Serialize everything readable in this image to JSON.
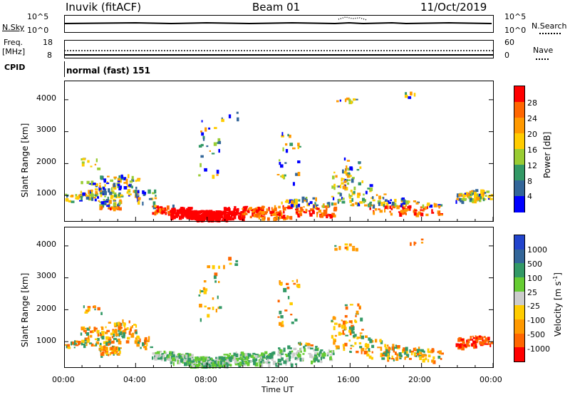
{
  "header": {
    "site": "Inuvik (fitACF)",
    "beam": "Beam 01",
    "date": "11/Oct/2019"
  },
  "top_panels": {
    "nsky_label": "N.Sky",
    "nsky_ticks": [
      "10^5",
      "10^0"
    ],
    "nsearch_label": "N.Search",
    "nsearch_ticks": [
      "10^5",
      "10^0"
    ],
    "freq_label": "Freq.",
    "freq_unit": "[MHz]",
    "freq_ticks": [
      "18",
      "8"
    ],
    "nave_label": "Nave",
    "nave_ticks": [
      "60",
      "0"
    ],
    "cpid_label": "CPID",
    "cpid_text": "normal (fast) 151"
  },
  "chart_data": [
    {
      "type": "heatmap",
      "name": "power",
      "ylabel": "Slant Range [km]",
      "yticks": [
        "4000",
        "3000",
        "2000",
        "1000"
      ],
      "ylim": [
        200,
        4600
      ],
      "xlim": [
        0,
        24
      ],
      "colorbar_label": "Power [dB]",
      "colorbar_ticks": [
        "28",
        "24",
        "20",
        "16",
        "12",
        "8",
        "4"
      ],
      "colorbar_colors": [
        "#ff0000",
        "#ff6600",
        "#ff9900",
        "#ffcc00",
        "#99cc33",
        "#339966",
        "#336699",
        "#0000ff"
      ]
    },
    {
      "type": "heatmap",
      "name": "velocity",
      "ylabel": "Slant Range [km]",
      "yticks": [
        "4000",
        "3000",
        "2000",
        "1000"
      ],
      "ylim": [
        200,
        4600
      ],
      "xlim": [
        0,
        24
      ],
      "colorbar_label": "Velocity [m s",
      "colorbar_label_sup": "-1",
      "colorbar_label_end": "]",
      "colorbar_ticks": [
        "1000",
        "500",
        "100",
        "25",
        "-25",
        "-100",
        "-500",
        "-1000"
      ],
      "colorbar_colors": [
        "#2244cc",
        "#336699",
        "#339966",
        "#66cc33",
        "#cccccc",
        "#ffcc00",
        "#ff9900",
        "#ff6600",
        "#ff0000"
      ]
    }
  ],
  "xaxis": {
    "ticks": [
      "00:00",
      "04:00",
      "08:00",
      "12:00",
      "16:00",
      "20:00",
      "00:00"
    ],
    "label": "Time UT"
  }
}
